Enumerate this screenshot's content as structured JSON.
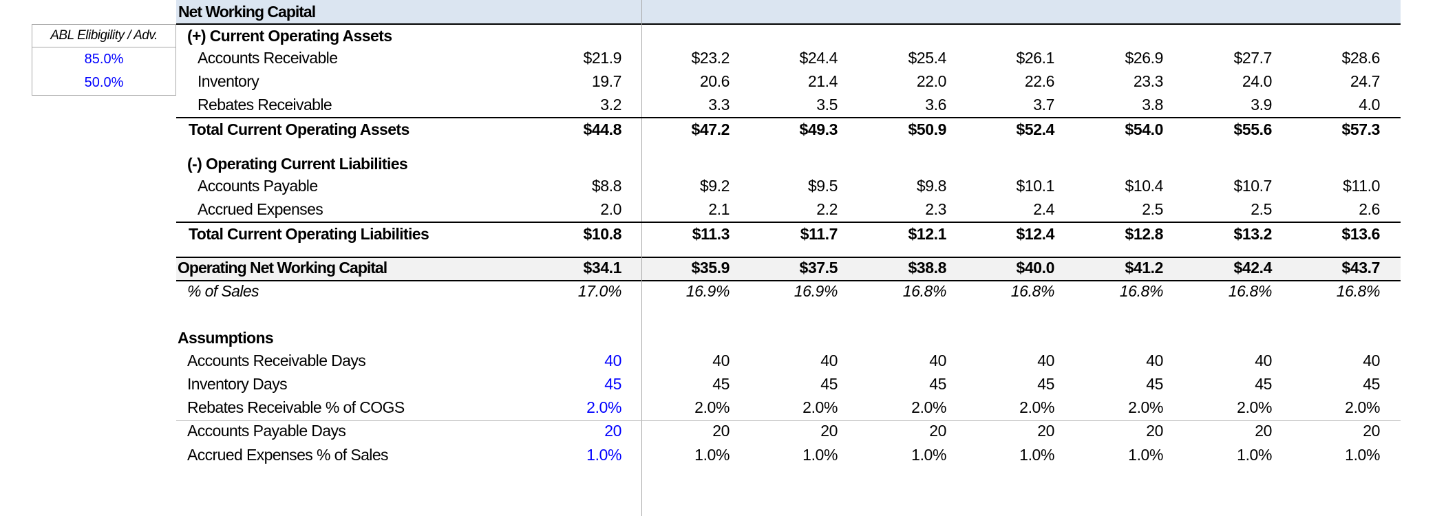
{
  "title": "Net Working Capital",
  "abl": {
    "header": "ABL Elibigility / Adv.",
    "values": [
      "85.0%",
      "50.0%"
    ]
  },
  "sections": {
    "current_assets_header": "(+) Current Operating Assets",
    "liabilities_header": "(-) Operating Current Liabilities",
    "assumptions_header": "Assumptions"
  },
  "rows": {
    "ar": {
      "label": "Accounts Receivable",
      "values": [
        "$21.9",
        "$23.2",
        "$24.4",
        "$25.4",
        "$26.1",
        "$26.9",
        "$27.7",
        "$28.6"
      ]
    },
    "inv": {
      "label": "Inventory",
      "values": [
        "19.7",
        "20.6",
        "21.4",
        "22.0",
        "22.6",
        "23.3",
        "24.0",
        "24.7"
      ]
    },
    "reb": {
      "label": "Rebates Receivable",
      "values": [
        "3.2",
        "3.3",
        "3.5",
        "3.6",
        "3.7",
        "3.8",
        "3.9",
        "4.0"
      ]
    },
    "tca": {
      "label": "Total Current Operating Assets",
      "values": [
        "$44.8",
        "$47.2",
        "$49.3",
        "$50.9",
        "$52.4",
        "$54.0",
        "$55.6",
        "$57.3"
      ]
    },
    "ap": {
      "label": "Accounts Payable",
      "values": [
        "$8.8",
        "$9.2",
        "$9.5",
        "$9.8",
        "$10.1",
        "$10.4",
        "$10.7",
        "$11.0"
      ]
    },
    "ae": {
      "label": "Accrued Expenses",
      "values": [
        "2.0",
        "2.1",
        "2.2",
        "2.3",
        "2.4",
        "2.5",
        "2.5",
        "2.6"
      ]
    },
    "tcl": {
      "label": "Total Current Operating Liabilities",
      "values": [
        "$10.8",
        "$11.3",
        "$11.7",
        "$12.1",
        "$12.4",
        "$12.8",
        "$13.2",
        "$13.6"
      ]
    },
    "onwc": {
      "label": "Operating Net Working Capital",
      "values": [
        "$34.1",
        "$35.9",
        "$37.5",
        "$38.8",
        "$40.0",
        "$41.2",
        "$42.4",
        "$43.7"
      ]
    },
    "pct": {
      "label": "% of Sales",
      "values": [
        "17.0%",
        "16.9%",
        "16.9%",
        "16.8%",
        "16.8%",
        "16.8%",
        "16.8%",
        "16.8%"
      ]
    },
    "ard": {
      "label": "Accounts Receivable Days",
      "values": [
        "40",
        "40",
        "40",
        "40",
        "40",
        "40",
        "40",
        "40"
      ]
    },
    "invd": {
      "label": "Inventory Days",
      "values": [
        "45",
        "45",
        "45",
        "45",
        "45",
        "45",
        "45",
        "45"
      ]
    },
    "rebp": {
      "label": "Rebates Receivable % of COGS",
      "values": [
        "2.0%",
        "2.0%",
        "2.0%",
        "2.0%",
        "2.0%",
        "2.0%",
        "2.0%",
        "2.0%"
      ]
    },
    "apd": {
      "label": "Accounts Payable Days",
      "values": [
        "20",
        "20",
        "20",
        "20",
        "20",
        "20",
        "20",
        "20"
      ]
    },
    "aep": {
      "label": "Accrued Expenses % of Sales",
      "values": [
        "1.0%",
        "1.0%",
        "1.0%",
        "1.0%",
        "1.0%",
        "1.0%",
        "1.0%",
        "1.0%"
      ]
    }
  }
}
